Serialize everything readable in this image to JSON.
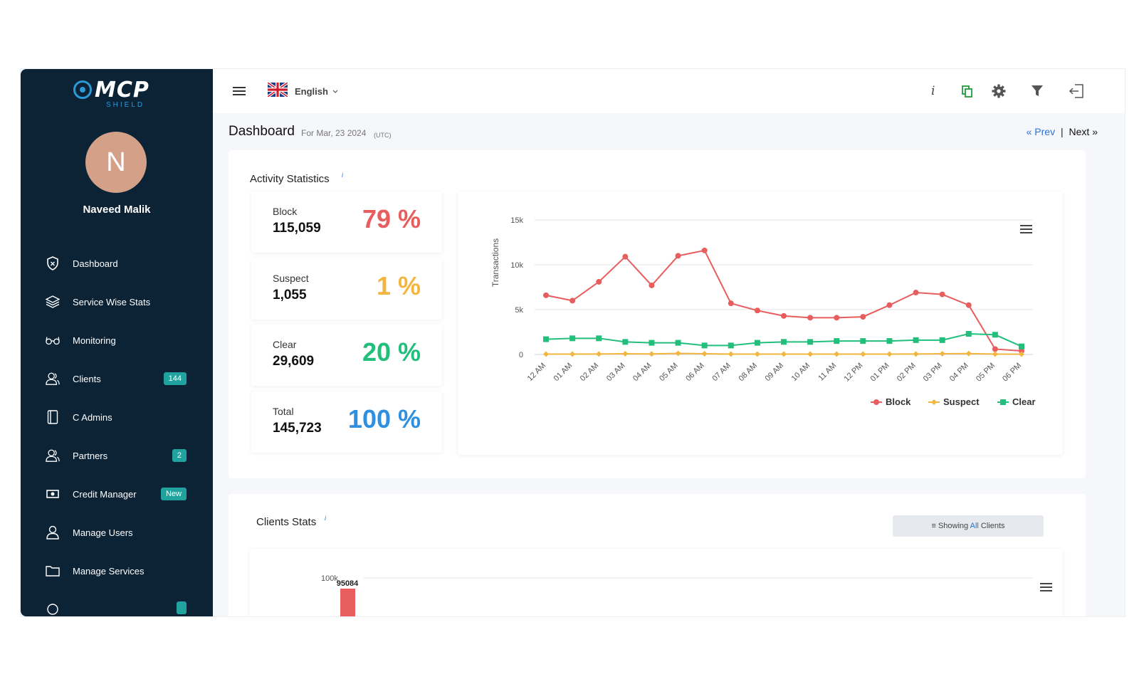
{
  "brand": {
    "name": "MCP",
    "tagline": "SHIELD"
  },
  "user": {
    "initial": "N",
    "name": "Naveed Malik"
  },
  "sidebar": {
    "items": [
      {
        "label": "Dashboard",
        "icon": "shield-icon",
        "badge": ""
      },
      {
        "label": "Service Wise Stats",
        "icon": "layers-icon",
        "badge": ""
      },
      {
        "label": "Monitoring",
        "icon": "glasses-icon",
        "badge": ""
      },
      {
        "label": "Clients",
        "icon": "users-icon",
        "badge": "144"
      },
      {
        "label": "C Admins",
        "icon": "book-icon",
        "badge": ""
      },
      {
        "label": "Partners",
        "icon": "users-icon",
        "badge": "2"
      },
      {
        "label": "Credit Manager",
        "icon": "money-icon",
        "badge": "New"
      },
      {
        "label": "Manage Users",
        "icon": "user-icon",
        "badge": ""
      },
      {
        "label": "Manage Services",
        "icon": "folder-icon",
        "badge": ""
      }
    ]
  },
  "header": {
    "language": "English",
    "flag": "uk-flag-icon"
  },
  "page": {
    "title": "Dashboard",
    "subtitle": "For Mar, 23 2024",
    "timezone": "(UTC)",
    "prev_label": "Prev",
    "next_label": "Next",
    "separator": "|"
  },
  "activity": {
    "title": "Activity Statistics",
    "info": "i",
    "stats": [
      {
        "label": "Block",
        "value": "115,059",
        "percent": "79 %",
        "color": "#e85d5d"
      },
      {
        "label": "Suspect",
        "value": "1,055",
        "percent": "1 %",
        "color": "#f2b63f"
      },
      {
        "label": "Clear",
        "value": "29,609",
        "percent": "20 %",
        "color": "#22bf7c"
      },
      {
        "label": "Total",
        "value": "145,723",
        "percent": "100 %",
        "color": "#2f8fe0"
      }
    ]
  },
  "clients_stats": {
    "title": "Clients Stats",
    "info": "i",
    "filter_prefix": "Showing",
    "filter_highlight": "All",
    "filter_suffix": "Clients",
    "peak_label": "95084",
    "y_top_label": "100k"
  },
  "chart_data": {
    "type": "line",
    "ylabel": "Transactions",
    "xlabel": "",
    "ylim": [
      0,
      15000
    ],
    "yticks": [
      "0",
      "5k",
      "10k",
      "15k"
    ],
    "categories": [
      "12 AM",
      "01 AM",
      "02 AM",
      "03 AM",
      "04 AM",
      "05 AM",
      "06 AM",
      "07 AM",
      "08 AM",
      "09 AM",
      "10 AM",
      "11 AM",
      "12 PM",
      "01 PM",
      "02 PM",
      "03 PM",
      "04 PM",
      "05 PM",
      "06 PM"
    ],
    "legend_position": "bottom-right",
    "grid": true,
    "series": [
      {
        "name": "Block",
        "color": "#e85d5d",
        "marker": "circle",
        "values": [
          6600,
          6000,
          8100,
          10900,
          7700,
          11000,
          11600,
          5700,
          4900,
          4300,
          4100,
          4100,
          4200,
          5500,
          6900,
          6700,
          5500,
          600,
          400
        ]
      },
      {
        "name": "Suspect",
        "color": "#f2b63f",
        "marker": "diamond",
        "values": [
          40,
          40,
          50,
          80,
          60,
          120,
          80,
          40,
          40,
          40,
          40,
          40,
          40,
          40,
          50,
          80,
          100,
          40,
          30
        ]
      },
      {
        "name": "Clear",
        "color": "#22bf7c",
        "marker": "square",
        "values": [
          1700,
          1800,
          1800,
          1400,
          1300,
          1300,
          1000,
          1000,
          1300,
          1400,
          1400,
          1500,
          1500,
          1500,
          1600,
          1600,
          2300,
          2200,
          900
        ]
      }
    ]
  },
  "icons": {
    "menu": "hamburger-icon",
    "info": "info-icon",
    "copy": "copy-icon",
    "settings": "gear-icon",
    "filter": "filter-icon",
    "logout": "logout-icon",
    "chart_menu": "chart-menu-icon"
  },
  "colors": {
    "sidebar_bg": "#0c2235",
    "accent": "#2a6fd6",
    "badge": "#20a39e"
  }
}
